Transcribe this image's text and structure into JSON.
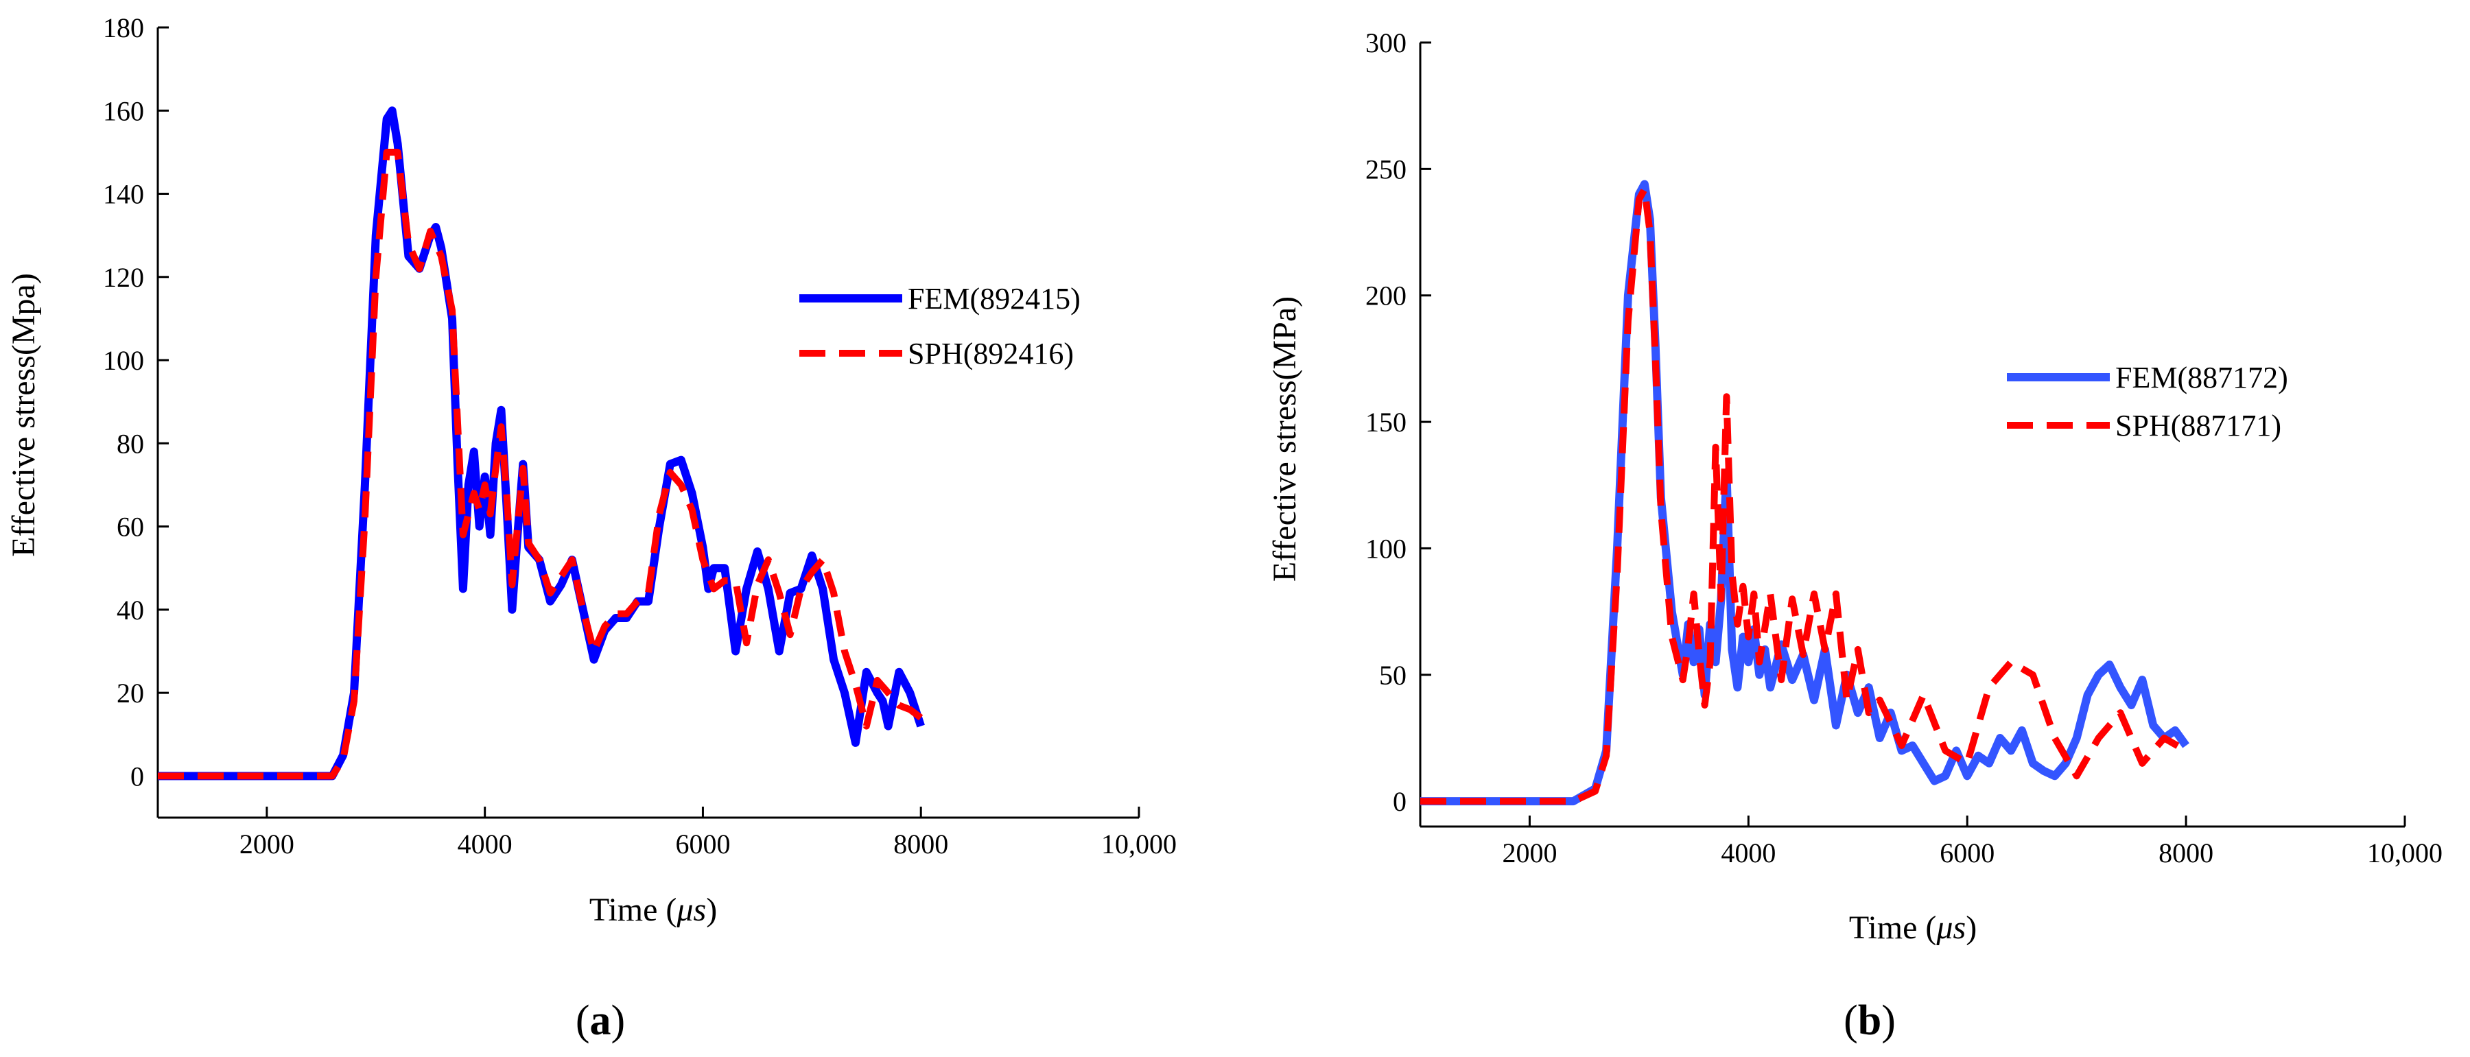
{
  "chart_data": [
    {
      "type": "line",
      "panel_label_open": "(",
      "panel_label": "a",
      "panel_label_close": ")",
      "xlabel_prefix": "Time (",
      "xlabel_unit": "μs",
      "xlabel_suffix": ")",
      "ylabel": "Effective stress(Mpa)",
      "xlim": [
        1000,
        10000
      ],
      "ylim": [
        -10,
        180
      ],
      "xticks": [
        2000,
        4000,
        6000,
        8000,
        10000
      ],
      "xtick_labels": [
        "2000",
        "4000",
        "6000",
        "8000",
        "10,000"
      ],
      "yticks": [
        0,
        20,
        40,
        60,
        80,
        100,
        120,
        140,
        160,
        180
      ],
      "ytick_labels": [
        "0",
        "20",
        "40",
        "60",
        "80",
        "100",
        "120",
        "140",
        "160",
        "180"
      ],
      "legend_position": "center-right",
      "series": [
        {
          "name": "FEM(892415)",
          "color": "#0000ff",
          "style": "solid",
          "x": [
            1000,
            2600,
            2700,
            2800,
            2900,
            3000,
            3100,
            3150,
            3200,
            3300,
            3400,
            3500,
            3550,
            3600,
            3700,
            3750,
            3800,
            3850,
            3900,
            3950,
            4000,
            4050,
            4100,
            4150,
            4200,
            4250,
            4300,
            4350,
            4400,
            4500,
            4600,
            4700,
            4800,
            4900,
            5000,
            5100,
            5200,
            5300,
            5400,
            5500,
            5600,
            5700,
            5800,
            5900,
            6000,
            6050,
            6100,
            6200,
            6300,
            6400,
            6500,
            6600,
            6700,
            6800,
            6900,
            7000,
            7100,
            7200,
            7300,
            7400,
            7500,
            7600,
            7650,
            7700,
            7800,
            7900,
            8000
          ],
          "values": [
            0,
            0,
            5,
            20,
            70,
            130,
            158,
            160,
            152,
            125,
            122,
            130,
            132,
            127,
            110,
            75,
            45,
            70,
            78,
            60,
            72,
            58,
            80,
            88,
            65,
            40,
            58,
            75,
            55,
            52,
            42,
            46,
            52,
            40,
            28,
            35,
            38,
            38,
            42,
            42,
            60,
            75,
            76,
            68,
            55,
            45,
            50,
            50,
            30,
            45,
            54,
            45,
            30,
            44,
            45,
            53,
            45,
            28,
            20,
            8,
            25,
            20,
            18,
            12,
            25,
            20,
            12
          ]
        },
        {
          "name": "SPH(892416)",
          "color": "#ff0000",
          "style": "dashed",
          "x": [
            1000,
            2600,
            2700,
            2800,
            2900,
            3000,
            3100,
            3200,
            3300,
            3400,
            3500,
            3600,
            3700,
            3800,
            3850,
            3900,
            3950,
            4000,
            4050,
            4100,
            4150,
            4200,
            4250,
            4300,
            4350,
            4400,
            4500,
            4600,
            4700,
            4800,
            4900,
            5000,
            5100,
            5200,
            5300,
            5400,
            5500,
            5600,
            5700,
            5800,
            5900,
            6000,
            6100,
            6200,
            6300,
            6400,
            6500,
            6600,
            6700,
            6800,
            6900,
            7000,
            7100,
            7200,
            7300,
            7400,
            7500,
            7600,
            7700,
            7800,
            7900,
            8000
          ],
          "values": [
            0,
            0,
            4,
            18,
            62,
            120,
            150,
            150,
            128,
            122,
            131,
            125,
            112,
            58,
            63,
            68,
            64,
            70,
            63,
            74,
            84,
            68,
            46,
            60,
            74,
            56,
            52,
            44,
            48,
            52,
            40,
            30,
            36,
            39,
            39,
            42,
            44,
            63,
            73,
            70,
            64,
            52,
            45,
            47,
            47,
            32,
            46,
            52,
            44,
            34,
            45,
            49,
            52,
            44,
            30,
            22,
            12,
            23,
            20,
            17,
            16,
            14
          ]
        }
      ]
    },
    {
      "type": "line",
      "panel_label_open": "(",
      "panel_label": "b",
      "panel_label_close": ")",
      "xlabel_prefix": "Time (",
      "xlabel_unit": "μs",
      "xlabel_suffix": ")",
      "ylabel": "Effective stress(MPa)",
      "xlim": [
        1000,
        10000
      ],
      "ylim": [
        -10,
        300
      ],
      "xticks": [
        2000,
        4000,
        6000,
        8000,
        10000
      ],
      "xtick_labels": [
        "2000",
        "4000",
        "6000",
        "8000",
        "10,000"
      ],
      "yticks": [
        0,
        50,
        100,
        150,
        200,
        250,
        300
      ],
      "ytick_labels": [
        "0",
        "50",
        "100",
        "150",
        "200",
        "250",
        "300"
      ],
      "legend_position": "center-right",
      "series": [
        {
          "name": "FEM(887172)",
          "color": "#3355ff",
          "style": "solid",
          "x": [
            1000,
            2400,
            2600,
            2700,
            2800,
            2900,
            3000,
            3050,
            3100,
            3150,
            3200,
            3300,
            3400,
            3450,
            3500,
            3550,
            3600,
            3650,
            3700,
            3750,
            3800,
            3850,
            3900,
            3950,
            4000,
            4050,
            4100,
            4150,
            4200,
            4300,
            4400,
            4500,
            4600,
            4700,
            4800,
            4900,
            5000,
            5100,
            5200,
            5300,
            5400,
            5500,
            5600,
            5700,
            5800,
            5900,
            6000,
            6100,
            6200,
            6300,
            6400,
            6500,
            6600,
            6700,
            6800,
            6900,
            7000,
            7100,
            7200,
            7300,
            7400,
            7500,
            7600,
            7700,
            7800,
            7900,
            8000
          ],
          "values": [
            0,
            0,
            5,
            20,
            100,
            200,
            240,
            244,
            230,
            180,
            120,
            75,
            50,
            70,
            55,
            68,
            42,
            70,
            55,
            80,
            130,
            60,
            45,
            65,
            55,
            68,
            50,
            60,
            45,
            62,
            48,
            58,
            40,
            60,
            30,
            50,
            35,
            45,
            25,
            35,
            20,
            22,
            15,
            8,
            10,
            20,
            10,
            18,
            15,
            25,
            20,
            28,
            15,
            12,
            10,
            15,
            25,
            42,
            50,
            54,
            45,
            38,
            48,
            30,
            25,
            28,
            22
          ]
        },
        {
          "name": "SPH(887171)",
          "color": "#ff0000",
          "style": "dashed",
          "x": [
            1000,
            2400,
            2600,
            2700,
            2800,
            2900,
            3000,
            3050,
            3100,
            3150,
            3200,
            3300,
            3400,
            3450,
            3500,
            3550,
            3600,
            3650,
            3700,
            3750,
            3800,
            3850,
            3900,
            3950,
            4000,
            4050,
            4100,
            4200,
            4300,
            4400,
            4500,
            4600,
            4700,
            4800,
            4900,
            5000,
            5100,
            5200,
            5400,
            5600,
            5800,
            6000,
            6200,
            6400,
            6600,
            6800,
            7000,
            7200,
            7400,
            7600,
            7800,
            8000
          ],
          "values": [
            0,
            0,
            4,
            18,
            90,
            190,
            238,
            242,
            225,
            175,
            115,
            65,
            48,
            62,
            82,
            58,
            38,
            55,
            140,
            80,
            160,
            90,
            70,
            85,
            65,
            82,
            55,
            82,
            48,
            80,
            58,
            82,
            60,
            82,
            40,
            60,
            35,
            40,
            22,
            42,
            20,
            15,
            45,
            55,
            50,
            25,
            10,
            25,
            35,
            15,
            25,
            20
          ]
        }
      ]
    }
  ]
}
